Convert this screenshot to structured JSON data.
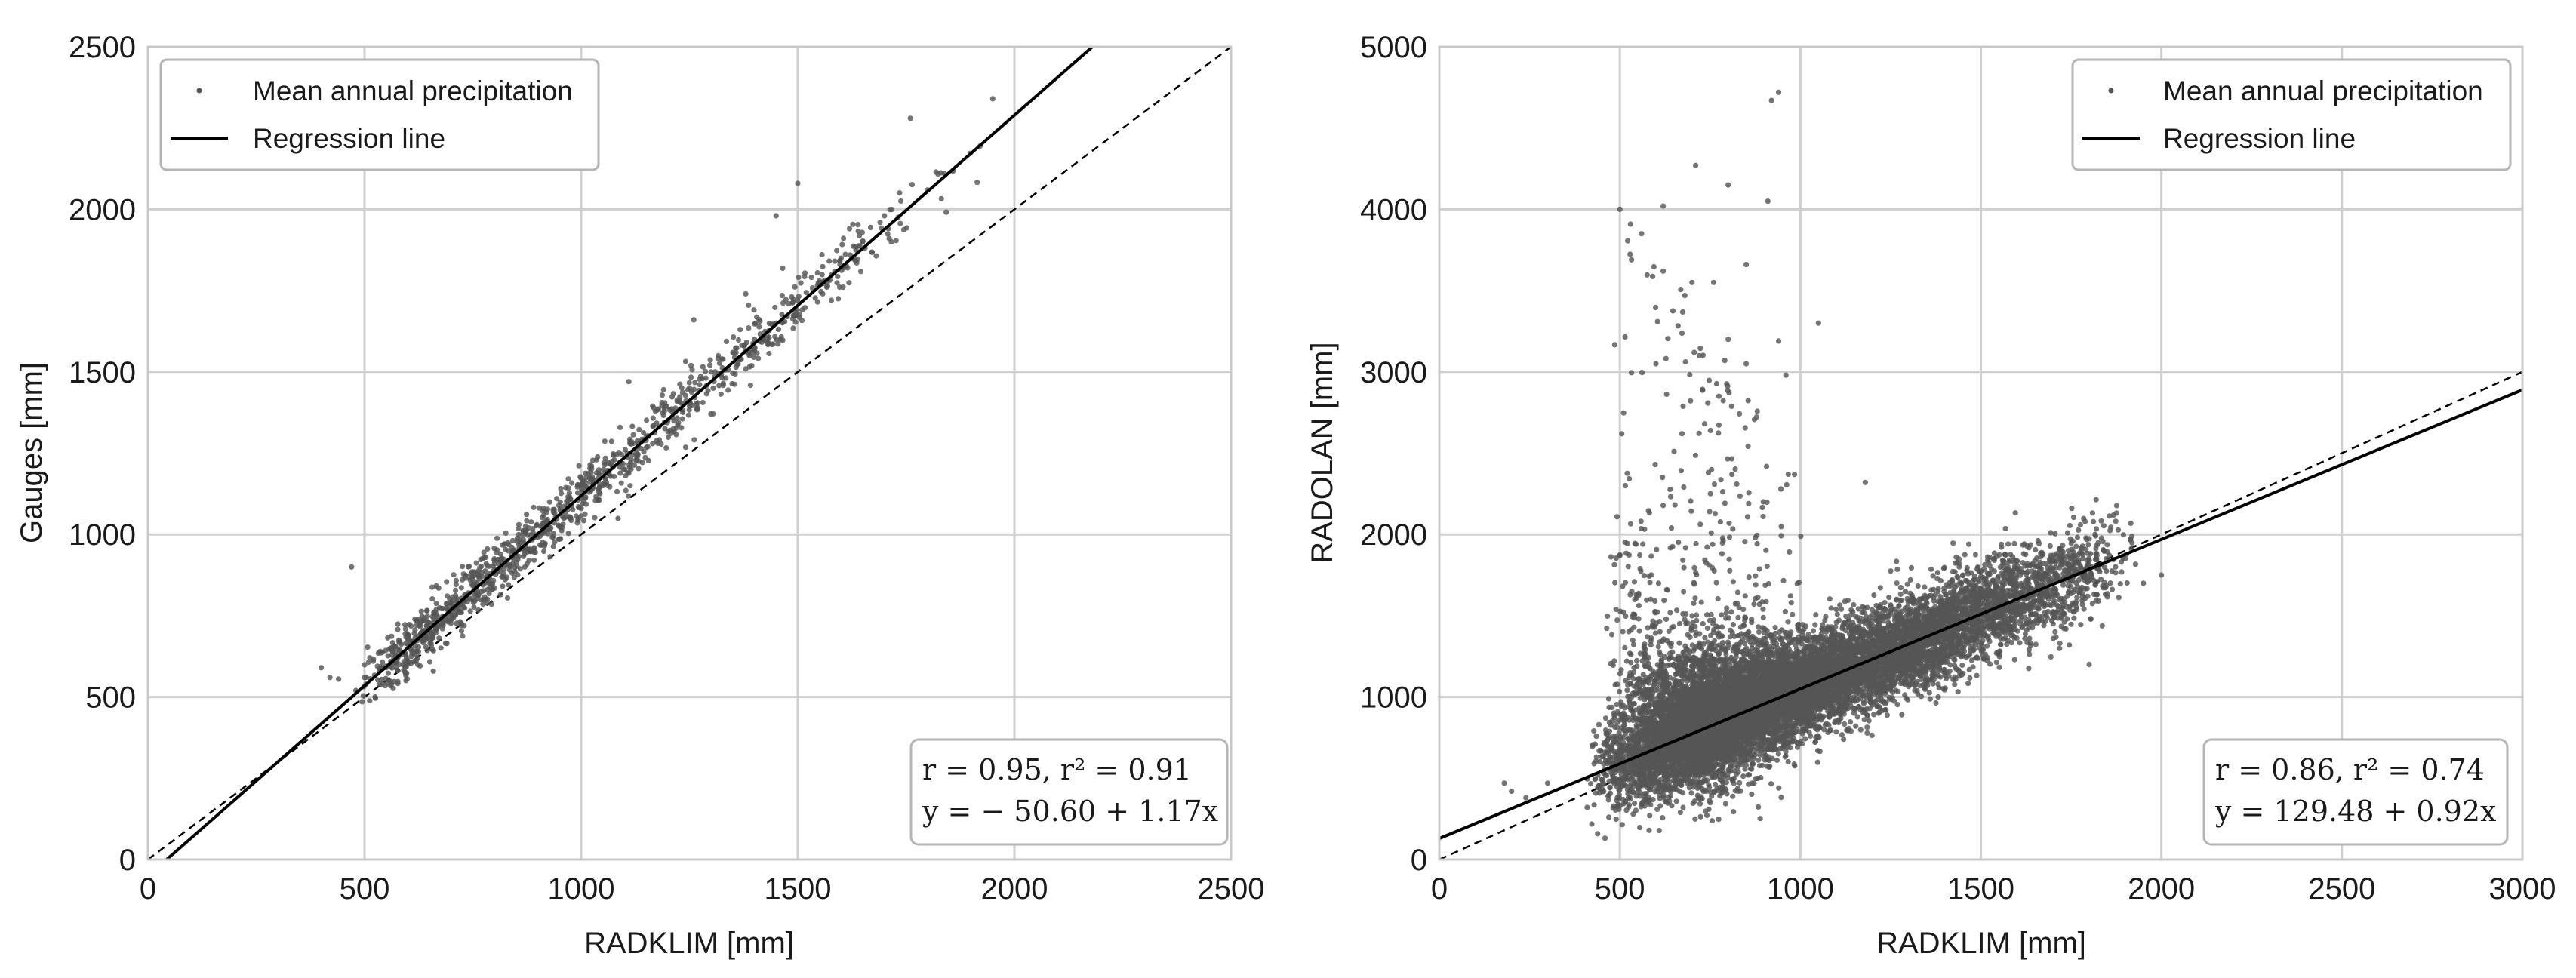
{
  "chart_data": [
    {
      "type": "scatter",
      "xlabel": "RADKLIM [mm]",
      "ylabel": "Gauges [mm]",
      "xlim": [
        0,
        2500
      ],
      "ylim": [
        0,
        2500
      ],
      "xticks": [
        0,
        500,
        1000,
        1500,
        2000,
        2500
      ],
      "yticks": [
        0,
        500,
        1000,
        1500,
        2000,
        2500
      ],
      "grid": true,
      "legend_position": "top-left",
      "legend": {
        "points": "Mean annual precipitation",
        "line": "Regression line"
      },
      "stats_lines": [
        "r = 0.95, r² = 0.91",
        "y = − 50.60 + 1.17x"
      ],
      "stats_position": "bottom-right",
      "regression": {
        "intercept": -50.6,
        "slope": 1.17
      },
      "reference_line": {
        "intercept": 0,
        "slope": 1,
        "style": "dashed"
      },
      "point_color": "#555555",
      "line_color": "#000000",
      "series": [
        {
          "values": [
            [
              400,
              590
            ],
            [
              420,
              560
            ],
            [
              440,
              555
            ],
            [
              470,
              900
            ],
            [
              480,
              520
            ],
            [
              500,
              560
            ],
            [
              520,
              610
            ],
            [
              540,
              540
            ],
            [
              560,
              650
            ],
            [
              580,
              600
            ],
            [
              600,
              690
            ],
            [
              620,
              640
            ],
            [
              640,
              700
            ],
            [
              660,
              760
            ],
            [
              680,
              730
            ],
            [
              700,
              790
            ],
            [
              720,
              760
            ],
            [
              740,
              820
            ],
            [
              760,
              850
            ],
            [
              780,
              800
            ],
            [
              800,
              910
            ],
            [
              820,
              870
            ],
            [
              840,
              960
            ],
            [
              870,
              900
            ],
            [
              900,
              1000
            ],
            [
              930,
              1020
            ],
            [
              960,
              1050
            ],
            [
              1000,
              1080
            ],
            [
              1050,
              1150
            ],
            [
              1100,
              1200
            ],
            [
              1150,
              1300
            ],
            [
              1200,
              1350
            ],
            [
              1250,
              1450
            ],
            [
              1300,
              1500
            ],
            [
              1350,
              1560
            ],
            [
              1400,
              1600
            ],
            [
              1450,
              1650
            ],
            [
              1500,
              1720
            ],
            [
              1550,
              1780
            ],
            [
              1600,
              1850
            ],
            [
              1650,
              1900
            ],
            [
              1700,
              1980
            ],
            [
              1760,
              2280
            ],
            [
              1950,
              2340
            ],
            [
              1450,
              1980
            ],
            [
              1500,
              2080
            ],
            [
              1380,
              1740
            ],
            [
              1260,
              1660
            ],
            [
              1110,
              1470
            ]
          ],
          "scatter": {
            "n": 1100,
            "seed": 11,
            "xmin": 480,
            "xmax": 1950,
            "xmode": 580,
            "slope": 1.17,
            "intercept": -50.6,
            "noise": 45
          }
        }
      ]
    },
    {
      "type": "scatter",
      "xlabel": "RADKLIM [mm]",
      "ylabel": "RADOLAN [mm]",
      "xlim": [
        0,
        3000
      ],
      "ylim": [
        0,
        5000
      ],
      "xticks": [
        0,
        500,
        1000,
        1500,
        2000,
        2500,
        3000
      ],
      "yticks": [
        0,
        1000,
        2000,
        3000,
        4000,
        5000
      ],
      "grid": true,
      "legend_position": "top-right",
      "legend": {
        "points": "Mean annual precipitation",
        "line": "Regression line"
      },
      "stats_lines": [
        "r = 0.86, r² = 0.74",
        "y = 129.48 + 0.92x"
      ],
      "stats_position": "bottom-right",
      "regression": {
        "intercept": 129.48,
        "slope": 0.92
      },
      "reference_line": {
        "intercept": 0,
        "slope": 1,
        "style": "dashed"
      },
      "point_color": "#555555",
      "line_color": "#000000",
      "series": [
        {
          "values": [
            [
              940,
              4720
            ],
            [
              920,
              4670
            ],
            [
              710,
              4270
            ],
            [
              800,
              4150
            ],
            [
              620,
              4020
            ],
            [
              500,
              4000
            ],
            [
              560,
              3850
            ],
            [
              910,
              4050
            ],
            [
              850,
              3660
            ],
            [
              620,
              3620
            ],
            [
              700,
              3550
            ],
            [
              760,
              3550
            ],
            [
              680,
              3470
            ],
            [
              1050,
              3300
            ],
            [
              800,
              3200
            ],
            [
              940,
              3190
            ],
            [
              720,
              3100
            ],
            [
              600,
              3050
            ],
            [
              850,
              3050
            ],
            [
              960,
              2980
            ],
            [
              1180,
              2320
            ],
            [
              1440,
              1800
            ],
            [
              1900,
              1850
            ],
            [
              1800,
              1200
            ],
            [
              1950,
              1700
            ],
            [
              2000,
              1750
            ],
            [
              180,
              470
            ],
            [
              200,
              420
            ],
            [
              240,
              380
            ],
            [
              300,
              470
            ]
          ],
          "clouds": [
            {
              "n": 9000,
              "seed": 21,
              "xmin": 400,
              "xmax": 1950,
              "xmode": 850,
              "slope": 0.92,
              "intercept": 129.48,
              "noise": 150
            },
            {
              "n": 2600,
              "seed": 22,
              "xmin": 450,
              "xmax": 1000,
              "xmode": 720,
              "slope": 0.92,
              "intercept": 129.48,
              "noise": 220,
              "spike": 520,
              "rate": 0.006
            },
            {
              "n": 380,
              "seed": 23,
              "xmin": 480,
              "xmax": 1050,
              "xmode": 760,
              "slope": 0.92,
              "intercept": 129.48,
              "noise": 120,
              "spike": 1500,
              "rate": 0.0019
            }
          ]
        }
      ]
    }
  ]
}
